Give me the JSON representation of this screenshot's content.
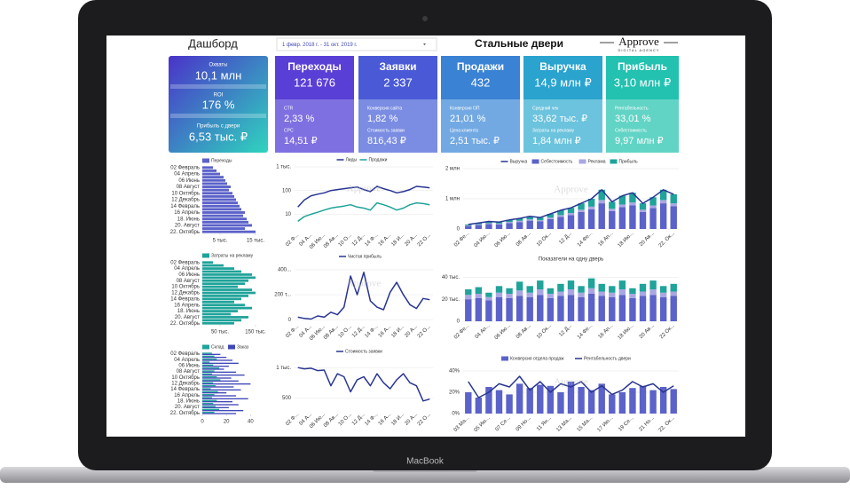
{
  "device": {
    "label": "MacBook"
  },
  "header": {
    "title": "Дашборд",
    "date_range": "1 февр. 2018 г. - 31 окт. 2019 г.",
    "company": "Стальные двери",
    "logo": "Approve",
    "logo_sub": "DIGITAL AGENCY",
    "watermark": "Approve"
  },
  "summary": [
    {
      "label": "Охваты",
      "value": "10,1 млн"
    },
    {
      "label": "ROI",
      "value": "176 %"
    },
    {
      "label": "Прибыль с двери",
      "value": "6,53 тыс. ₽"
    }
  ],
  "kpis": [
    {
      "title": "Переходы",
      "value": "121 676",
      "details": [
        {
          "label": "CTR",
          "value": "2,33 %"
        },
        {
          "label": "CPC",
          "value": "14,51 ₽"
        }
      ]
    },
    {
      "title": "Заявки",
      "value": "2 337",
      "details": [
        {
          "label": "Конверсия сайта",
          "value": "1,82 %"
        },
        {
          "label": "Стоимость заявки",
          "value": "816,43 ₽"
        }
      ]
    },
    {
      "title": "Продажи",
      "value": "432",
      "details": [
        {
          "label": "Конверсия ОП",
          "value": "21,01 %"
        },
        {
          "label": "Цена клиента",
          "value": "2,51 тыс. ₽"
        }
      ]
    },
    {
      "title": "Выручка",
      "value": "14,9 млн ₽",
      "details": [
        {
          "label": "Средний чек",
          "value": "33,62 тыс. ₽"
        },
        {
          "label": "Затраты на рекламу",
          "value": "1,84 млн ₽"
        }
      ]
    },
    {
      "title": "Прибыль",
      "value": "3,10 млн ₽",
      "details": [
        {
          "label": "Рентабельность",
          "value": "33,01 %"
        },
        {
          "label": "Себестоимость",
          "value": "9,97 млн ₽"
        }
      ]
    }
  ],
  "chart_data": [
    {
      "type": "hbar",
      "categories": [
        "02 Февраль",
        null,
        "04 Апрель",
        null,
        "06 Июнь",
        null,
        "08 Август",
        null,
        "10 Октябрь",
        null,
        "12 Декабрь",
        null,
        "14 Февраль",
        null,
        "16 Апрель",
        null,
        "18. Июнь",
        null,
        "20. Август",
        null,
        "22. Октябрь"
      ],
      "series": [
        {
          "name": "Переходы",
          "color": "#5b62c9",
          "values": [
            3000,
            4000,
            5000,
            6000,
            6500,
            7000,
            8000,
            7500,
            8500,
            9000,
            9500,
            10000,
            10500,
            11000,
            12000,
            11500,
            12500,
            13000,
            14000,
            12000,
            15000
          ]
        }
      ],
      "xlim": [
        0,
        17000
      ],
      "xticks": [
        {
          "value": 5000,
          "label": "5 тыс."
        },
        {
          "value": 15000,
          "label": "15 тыс."
        }
      ]
    },
    {
      "type": "line",
      "log": true,
      "categories": [
        "02 Ф...",
        null,
        "04 А...",
        null,
        "06 Ию...",
        null,
        "08 Ав...",
        null,
        "10 О...",
        null,
        "12 Д...",
        null,
        "14 Ф...",
        null,
        "16 А...",
        null,
        "18 И...",
        null,
        "20 А...",
        null,
        "22 О..."
      ],
      "series": [
        {
          "name": "Лиды",
          "color": "#283593",
          "values": [
            20,
            40,
            60,
            70,
            80,
            100,
            110,
            120,
            130,
            140,
            110,
            90,
            150,
            120,
            100,
            80,
            90,
            110,
            150,
            140,
            130
          ]
        },
        {
          "name": "Продажи",
          "color": "#1fa39a",
          "values": [
            5,
            8,
            10,
            12,
            15,
            18,
            20,
            22,
            25,
            20,
            18,
            15,
            30,
            25,
            20,
            15,
            18,
            25,
            30,
            28,
            25
          ]
        }
      ],
      "ylim": [
        2,
        1000
      ],
      "yticks": [
        10,
        100,
        {
          "value": 1000,
          "label": "1 тыс."
        }
      ]
    },
    {
      "type": "combo",
      "stack": true,
      "categories": [
        "02 Фе...",
        null,
        "04 Ию...",
        null,
        "06 Ию...",
        null,
        "08 Ав...",
        null,
        "10 Ок...",
        null,
        "12 Д...",
        null,
        "14 Фе...",
        null,
        "16 Ап...",
        null,
        "18 Ию...",
        null,
        "20 Ав...",
        null,
        "22. Ок..."
      ],
      "series": [
        {
          "name": "Выручка",
          "type": "line",
          "color": "#283593",
          "values": [
            150000,
            200000,
            250000,
            230000,
            300000,
            350000,
            420000,
            380000,
            500000,
            620000,
            700000,
            850000,
            1000000,
            1300000,
            900000,
            1100000,
            1200000,
            850000,
            1050000,
            1300000,
            1150000
          ]
        },
        {
          "name": "Себестоимость",
          "type": "bar",
          "color": "#5b62c9",
          "values": [
            100000,
            130000,
            160000,
            150000,
            195000,
            230000,
            275000,
            250000,
            330000,
            400000,
            460000,
            560000,
            650000,
            850000,
            590000,
            720000,
            780000,
            560000,
            690000,
            850000,
            750000
          ]
        },
        {
          "name": "Реклама",
          "type": "bar",
          "color": "#a9a7e3",
          "values": [
            20000,
            25000,
            30000,
            30000,
            35000,
            40000,
            45000,
            40000,
            50000,
            60000,
            70000,
            80000,
            90000,
            110000,
            80000,
            90000,
            100000,
            80000,
            90000,
            110000,
            100000
          ]
        },
        {
          "name": "Прибыль",
          "type": "bar",
          "color": "#1fa39a",
          "values": [
            30000,
            45000,
            60000,
            50000,
            70000,
            80000,
            100000,
            90000,
            120000,
            160000,
            170000,
            210000,
            260000,
            340000,
            230000,
            290000,
            320000,
            210000,
            270000,
            340000,
            300000
          ]
        }
      ],
      "ylim": [
        0,
        2000000
      ],
      "yticks": [
        0,
        {
          "value": 1000000,
          "label": "1 млн"
        },
        {
          "value": 2000000,
          "label": "2 млн"
        }
      ]
    },
    {
      "type": "hbar",
      "categories": [
        "02 Февраль",
        null,
        "04 Апрель",
        null,
        "06 Июнь",
        null,
        "08 Август",
        null,
        "10 Октябрь",
        null,
        "12 Декабрь",
        null,
        "14 Февраль",
        null,
        "16 Апрель",
        null,
        "18. Июнь",
        null,
        "20. Август",
        null,
        "22. Октябрь"
      ],
      "series": [
        {
          "name": "Затраты на рекламу",
          "color": "#1fa39a",
          "values": [
            30000,
            60000,
            90000,
            110000,
            140000,
            150000,
            130000,
            120000,
            100000,
            140000,
            150000,
            130000,
            110000,
            90000,
            120000,
            140000,
            100000,
            80000,
            130000,
            110000,
            90000
          ]
        }
      ],
      "xlim": [
        0,
        170000
      ],
      "xticks": [
        {
          "value": 50000,
          "label": "50 тыс."
        },
        {
          "value": 150000,
          "label": "150 тыс."
        }
      ]
    },
    {
      "type": "line",
      "categories": [
        "02 Ф...",
        null,
        "04 А...",
        null,
        "06 Ию...",
        null,
        "08 Ав...",
        null,
        "10 О...",
        null,
        "12 Д...",
        null,
        "14 Ф...",
        null,
        "16 А...",
        null,
        "18 И...",
        null,
        "20 А...",
        null,
        "22 О..."
      ],
      "series": [
        {
          "name": "Чистая прибыль",
          "color": "#283593",
          "values": [
            20000,
            10000,
            5000,
            30000,
            20000,
            60000,
            40000,
            100000,
            350000,
            200000,
            380000,
            150000,
            100000,
            80000,
            220000,
            300000,
            200000,
            120000,
            90000,
            170000,
            160000
          ]
        }
      ],
      "ylim": [
        -20000,
        450000
      ],
      "yticks": [
        0,
        {
          "value": 200000,
          "label": "200 т..."
        },
        {
          "value": 400000,
          "label": "400..."
        }
      ]
    },
    {
      "type": "bar",
      "stack": true,
      "title": "Показатели на одну дверь",
      "categories": [
        "02 Фе...",
        null,
        "04 Ап...",
        null,
        "06 Ию...",
        null,
        "08 Ав...",
        null,
        "10 Ок...",
        null,
        "12 Д...",
        null,
        "14 Фе...",
        null,
        "16 Ап...",
        null,
        "18 Ию...",
        null,
        "20 Ав...",
        null,
        "22 Ок..."
      ],
      "series": [
        {
          "color": "#5b62c9",
          "values": [
            20000,
            21000,
            19000,
            22000,
            21000,
            23000,
            22000,
            24000,
            21000,
            23000,
            24000,
            22000,
            25000,
            23000,
            22000,
            24000,
            21000,
            23000,
            24000,
            22000,
            23000
          ]
        },
        {
          "color": "#a9a7e3",
          "values": [
            4000,
            4000,
            3000,
            4000,
            4000,
            5000,
            4000,
            5000,
            4000,
            4000,
            5000,
            4000,
            5000,
            4000,
            4000,
            5000,
            4000,
            4000,
            5000,
            4000,
            4000
          ]
        },
        {
          "color": "#1fa39a",
          "values": [
            5000,
            6000,
            4000,
            6000,
            5000,
            8000,
            6000,
            8000,
            5000,
            7000,
            8000,
            6000,
            9000,
            7000,
            6000,
            8000,
            5000,
            7000,
            8000,
            6000,
            7000
          ]
        }
      ],
      "ylim": [
        0,
        50000
      ],
      "yticks": [
        0,
        {
          "value": 20000,
          "label": "20 тыс."
        },
        {
          "value": 40000,
          "label": "40 тыс."
        }
      ]
    },
    {
      "type": "hbar",
      "categories": [
        "02 Февраль",
        null,
        "04 Апрель",
        null,
        "06 Июнь",
        null,
        "08 Август",
        null,
        "10 Октябрь",
        null,
        "12 Декабрь",
        null,
        "14 Февраль",
        null,
        "16 Апрель",
        null,
        "18. Июнь",
        null,
        "20. Август",
        null,
        "22. Октябрь"
      ],
      "series": [
        {
          "name": "Склад",
          "color": "#1fa39a",
          "values": [
            8,
            10,
            12,
            6,
            9,
            14,
            10,
            8,
            12,
            15,
            9,
            11,
            7,
            13,
            10,
            8,
            12,
            9,
            11,
            14,
            10
          ]
        },
        {
          "name": "Заказ",
          "color": "#3f47b8",
          "values": [
            15,
            20,
            25,
            30,
            22,
            18,
            28,
            35,
            24,
            30,
            40,
            26,
            32,
            20,
            28,
            38,
            25,
            30,
            22,
            34,
            28
          ]
        }
      ],
      "xlim": [
        0,
        50
      ],
      "xticks": [
        0,
        20,
        40
      ]
    },
    {
      "type": "line",
      "categories": [
        "02 Ф...",
        null,
        "04 А...",
        null,
        "06 Ию...",
        null,
        "08 Ав...",
        null,
        "10 О...",
        null,
        "12 Д...",
        null,
        "14 Ф...",
        null,
        "16 А...",
        null,
        "18 И...",
        null,
        "20 А...",
        null,
        "22 О..."
      ],
      "series": [
        {
          "name": "Стоимость заявки",
          "color": "#283593",
          "values": [
            1000,
            980,
            990,
            950,
            960,
            700,
            900,
            850,
            600,
            800,
            850,
            700,
            900,
            750,
            650,
            800,
            900,
            750,
            700,
            450,
            480
          ]
        }
      ],
      "ylim": [
        300,
        1150
      ],
      "yticks": [
        500,
        {
          "value": 1000,
          "label": "1 тыс."
        }
      ]
    },
    {
      "type": "combo",
      "categories": [
        "03 Ма...",
        null,
        "05 Ию...",
        null,
        "07 Се...",
        null,
        "09 Но...",
        null,
        "11 Ян...",
        null,
        "13 Ма...",
        null,
        "15 Ма...",
        null,
        "17 Ию...",
        null,
        "19 Се...",
        null,
        "21 Но...",
        null,
        "22. Ок..."
      ],
      "series": [
        {
          "name": "Конверсия отдела продаж",
          "type": "bar",
          "color": "#5b62c9",
          "values": [
            20,
            15,
            25,
            22,
            18,
            28,
            24,
            27,
            26,
            20,
            30,
            25,
            22,
            28,
            18,
            20,
            24,
            26,
            22,
            25,
            23
          ]
        },
        {
          "name": "Рентабельность двери",
          "type": "line",
          "color": "#283593",
          "values": [
            30,
            15,
            20,
            28,
            25,
            35,
            22,
            30,
            20,
            28,
            25,
            30,
            20,
            26,
            18,
            22,
            30,
            25,
            28,
            20,
            26
          ]
        }
      ],
      "ylim": [
        0,
        45
      ],
      "yticks": [
        {
          "value": 0,
          "label": "0%"
        },
        {
          "value": 20,
          "label": "20%"
        },
        {
          "value": 40,
          "label": "40%"
        }
      ]
    }
  ]
}
